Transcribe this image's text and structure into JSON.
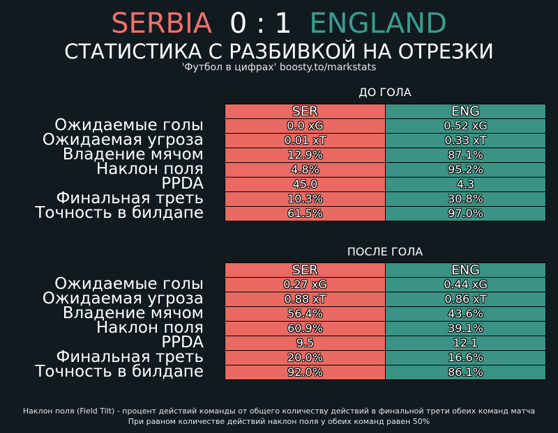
{
  "match": {
    "home": "SERBIA",
    "score": "0 : 1",
    "away": "ENGLAND"
  },
  "title": "СТАТИСТИКА С РАЗБИВКОЙ НА ОТРЕЗКИ",
  "subtitle": "'Футбол в цифрах' boosty.to/markstats",
  "colors": {
    "home": "#ea6963",
    "away": "#3a9385",
    "background": "#111a1f"
  },
  "chart_data": {
    "type": "table",
    "columns": [
      "SER",
      "ENG"
    ],
    "sections": [
      {
        "title": "ДО ГОЛА",
        "rows": [
          {
            "label": "Ожидаемые голы",
            "home": "0.0 xG",
            "away": "0.52 xG"
          },
          {
            "label": "Ожидаемая угроза",
            "home": "0.01 xT",
            "away": "0.33 xT"
          },
          {
            "label": "Владение мячом",
            "home": "12.9%",
            "away": "87.1%"
          },
          {
            "label": "Наклон поля",
            "home": "4.8%",
            "away": "95.2%"
          },
          {
            "label": "PPDA",
            "home": "45.0",
            "away": "4.3"
          },
          {
            "label": "Финальная треть",
            "home": "10.3%",
            "away": "30.8%"
          },
          {
            "label": "Точность в билдапе",
            "home": "61.5%",
            "away": "97.0%"
          }
        ]
      },
      {
        "title": "ПОСЛЕ ГОЛА",
        "rows": [
          {
            "label": "Ожидаемые голы",
            "home": "0.27 xG",
            "away": "0.44 xG"
          },
          {
            "label": "Ожидаемая угроза",
            "home": "0.88 xT",
            "away": "0.86 xT"
          },
          {
            "label": "Владение мячом",
            "home": "56.4%",
            "away": "43.6%"
          },
          {
            "label": "Наклон поля",
            "home": "60.9%",
            "away": "39.1%"
          },
          {
            "label": "PPDA",
            "home": "9.5",
            "away": "12.1"
          },
          {
            "label": "Финальная треть",
            "home": "20.0%",
            "away": "16.6%"
          },
          {
            "label": "Точность в билдапе",
            "home": "92.0%",
            "away": "86.1%"
          }
        ]
      }
    ]
  },
  "footnote": [
    "Наклон поля (Field Tilt) - процент действий команды от общего количеству действий в финальной трети обеих команд матча",
    "При равном количестве действий наклон поля у обеих команд равен 50%"
  ]
}
